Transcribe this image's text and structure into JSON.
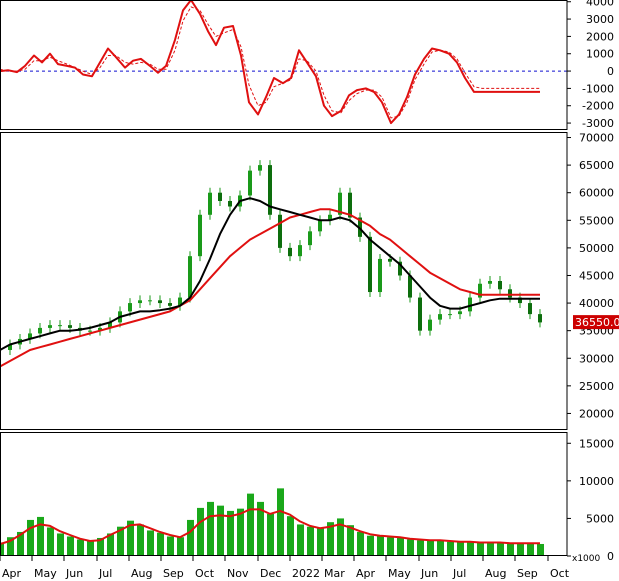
{
  "colors": {
    "candle": "#1a9a1a",
    "volume_bar": "#1aa81a",
    "red_line": "#e01010",
    "black_line": "#000000",
    "zero_line": "#1010d0",
    "price_badge_bg": "#cc0000",
    "price_badge_text": "#ffffff",
    "border": "#000000"
  },
  "chart_data": [
    {
      "id": "oscillator",
      "type": "line",
      "y_ticks": [
        -3000,
        -2000,
        -1000,
        0,
        1000,
        2000,
        3000,
        4000
      ],
      "y_tick_labels": [
        "-3000",
        "-2000",
        "-1000",
        "0",
        "1000",
        "2000",
        "3000",
        "4000"
      ],
      "ylim": [
        -3400,
        4100
      ],
      "zero_line": 0,
      "x": [
        0,
        8,
        17,
        25,
        34,
        42,
        50,
        58,
        67,
        75,
        83,
        92,
        100,
        108,
        116,
        125,
        133,
        141,
        150,
        158,
        166,
        175,
        183,
        191,
        200,
        208,
        216,
        224,
        233,
        241,
        249,
        258,
        266,
        274,
        283,
        291,
        299,
        307,
        316,
        324,
        332,
        341,
        349,
        357,
        366,
        374,
        382,
        391,
        399,
        407,
        415,
        424,
        432,
        440,
        449,
        457,
        465,
        474,
        482,
        490,
        498,
        507,
        515,
        523,
        532,
        540
      ],
      "series": [
        {
          "values": [
            0,
            50,
            -60,
            300,
            900,
            500,
            1000,
            400,
            300,
            200,
            -200,
            -300,
            500,
            1300,
            800,
            200,
            600,
            700,
            300,
            -100,
            300,
            1800,
            3500,
            4100,
            3300,
            2300,
            1500,
            2500,
            2600,
            900,
            -1800,
            -2500,
            -1500,
            -400,
            -700,
            -400,
            1200,
            500,
            -300,
            -2000,
            -2600,
            -2300,
            -1400,
            -1100,
            -1000,
            -1200,
            -1800,
            -3000,
            -2500,
            -1500,
            -200,
            700,
            1300,
            1200,
            1000,
            500,
            -400,
            -1200,
            -1200,
            -1200,
            -1200,
            -1200,
            -1200,
            -1200,
            -1200,
            -1200
          ]
        },
        {
          "values": [
            100,
            0,
            0,
            100,
            600,
            600,
            800,
            600,
            400,
            200,
            0,
            -200,
            200,
            900,
            900,
            500,
            400,
            500,
            400,
            100,
            100,
            1200,
            2900,
            3700,
            3500,
            2700,
            2000,
            2200,
            2400,
            1400,
            -800,
            -2000,
            -1800,
            -900,
            -700,
            -500,
            700,
            600,
            0,
            -1400,
            -2300,
            -2400,
            -1700,
            -1300,
            -1100,
            -1100,
            -1500,
            -2700,
            -2600,
            -1800,
            -500,
            400,
            1100,
            1200,
            1100,
            700,
            -100,
            -900,
            -1000,
            -1000,
            -1000,
            -1000,
            -1000,
            -1000,
            -1000,
            -1000
          ]
        }
      ]
    },
    {
      "id": "price",
      "type": "line",
      "y_ticks": [
        20000,
        25000,
        30000,
        35000,
        40000,
        45000,
        50000,
        55000,
        60000,
        65000,
        70000
      ],
      "y_tick_labels": [
        "20000",
        "25000",
        "30000",
        "35000",
        "40000",
        "45000",
        "50000",
        "55000",
        "60000",
        "65000",
        "70000"
      ],
      "ylim": [
        17000,
        71000
      ],
      "last_price_label": "36550.00",
      "last_price": 36550,
      "x": [
        0,
        10,
        20,
        30,
        40,
        50,
        60,
        70,
        80,
        90,
        100,
        110,
        120,
        130,
        140,
        150,
        160,
        170,
        180,
        190,
        200,
        210,
        220,
        230,
        240,
        250,
        260,
        270,
        280,
        290,
        300,
        310,
        320,
        330,
        340,
        350,
        360,
        370,
        380,
        390,
        400,
        410,
        420,
        430,
        440,
        450,
        460,
        470,
        480,
        490,
        500,
        510,
        520,
        530,
        540
      ],
      "series": [
        {
          "values": [
            31500,
            32500,
            33500,
            34500,
            35500,
            36000,
            36000,
            35500,
            35000,
            35000,
            35500,
            36500,
            38500,
            40000,
            40500,
            40500,
            40000,
            39500,
            41000,
            48500,
            56000,
            60000,
            58500,
            57500,
            59500,
            64000,
            65000,
            56000,
            50000,
            48500,
            50500,
            53000,
            55000,
            56000,
            60000,
            55500,
            52000,
            42000,
            48000,
            47500,
            45000,
            41000,
            35000,
            37000,
            38000,
            38000,
            38500,
            41000,
            43500,
            44000,
            42500,
            41000,
            40000,
            38000,
            36500
          ]
        },
        {
          "values": [
            31500,
            32500,
            33000,
            33500,
            34000,
            34500,
            35000,
            35000,
            35200,
            35500,
            36000,
            36500,
            37500,
            38000,
            38500,
            38500,
            38700,
            39000,
            39500,
            41000,
            44000,
            48000,
            52500,
            56000,
            58500,
            59000,
            58500,
            57500,
            57000,
            56500,
            56000,
            55500,
            55000,
            55000,
            55500,
            55000,
            53500,
            51500,
            50000,
            48500,
            47000,
            45000,
            43000,
            41000,
            39500,
            39000,
            39000,
            39500,
            40000,
            40500,
            40800,
            40800,
            40800,
            40800,
            40800
          ]
        },
        {
          "values": [
            28500,
            29500,
            30500,
            31500,
            32000,
            32500,
            33000,
            33500,
            34000,
            34500,
            35000,
            35500,
            36000,
            36500,
            37000,
            37500,
            38000,
            38500,
            39500,
            40500,
            42500,
            44500,
            46500,
            48500,
            50000,
            51500,
            52500,
            53500,
            54500,
            55500,
            56000,
            56500,
            57000,
            57000,
            56500,
            56000,
            55000,
            54000,
            52500,
            51500,
            50000,
            48500,
            47000,
            45500,
            44500,
            43500,
            42500,
            42000,
            41500,
            41500,
            41500,
            41500,
            41500,
            41500,
            41500
          ]
        }
      ]
    },
    {
      "id": "volume",
      "type": "bar",
      "y_ticks": [
        0,
        5000,
        10000,
        15000
      ],
      "y_tick_labels": [
        "0",
        "5000",
        "10000",
        "15000"
      ],
      "ylim": [
        0,
        16500
      ],
      "unit_label": "x1000",
      "x": [
        0,
        10,
        20,
        30,
        40,
        50,
        60,
        70,
        80,
        90,
        100,
        110,
        120,
        130,
        140,
        150,
        160,
        170,
        180,
        190,
        200,
        210,
        220,
        230,
        240,
        250,
        260,
        270,
        280,
        290,
        300,
        310,
        320,
        330,
        340,
        350,
        360,
        370,
        380,
        390,
        400,
        410,
        420,
        430,
        440,
        450,
        460,
        470,
        480,
        490,
        500,
        510,
        520,
        530,
        540
      ],
      "values": [
        1800,
        2500,
        3200,
        4800,
        5200,
        3800,
        3000,
        2600,
        2200,
        2000,
        2400,
        3000,
        3900,
        4700,
        4200,
        3400,
        3100,
        2600,
        2500,
        4800,
        6400,
        7200,
        6700,
        6000,
        6300,
        8300,
        7200,
        5600,
        9000,
        5300,
        4200,
        3900,
        3800,
        4500,
        5000,
        4100,
        3200,
        2700,
        2700,
        2500,
        2400,
        2200,
        2100,
        2100,
        2000,
        1900,
        1800,
        1800,
        1800,
        1700,
        1700,
        1700,
        1600,
        1600,
        1600
      ],
      "series": [
        {
          "values": [
            1600,
            2000,
            2800,
            3700,
            4200,
            4000,
            3300,
            2800,
            2300,
            2000,
            2100,
            2800,
            3400,
            4100,
            4200,
            3700,
            3200,
            2800,
            2500,
            3200,
            4500,
            5300,
            5400,
            5300,
            5600,
            6200,
            6200,
            5600,
            6000,
            5500,
            4600,
            4000,
            3700,
            3900,
            4200,
            3800,
            3300,
            2900,
            2700,
            2600,
            2500,
            2300,
            2200,
            2100,
            2100,
            2000,
            1900,
            1900,
            1800,
            1800,
            1800,
            1700,
            1700,
            1700,
            1700
          ]
        }
      ]
    }
  ],
  "x_axis": {
    "labels": [
      "Apr",
      "May",
      "Jun",
      "Jul",
      "Aug",
      "Sep",
      "Oct",
      "Nov",
      "Dec",
      "2022",
      "Mar",
      "Apr",
      "May",
      "Jun",
      "Jul",
      "Aug",
      "Sep",
      "Oct"
    ],
    "positions": [
      0,
      32,
      64,
      97,
      129,
      161,
      193,
      225,
      258,
      290,
      322,
      354,
      386,
      419,
      451,
      483,
      515,
      548
    ]
  }
}
